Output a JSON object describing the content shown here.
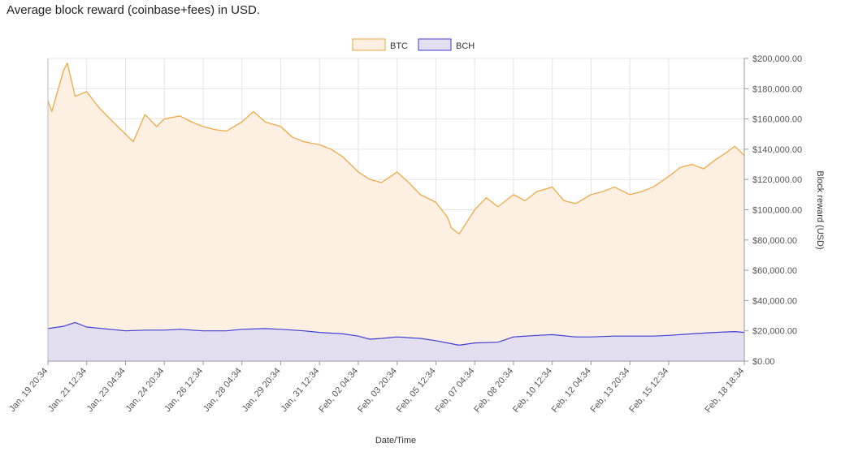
{
  "page": {
    "title": "Average block reward (coinbase+fees) in USD."
  },
  "colors": {
    "btc_line": "#f0a33a",
    "btc_fill": "#fdf0e2",
    "bch_line": "#3f3fd6",
    "bch_fill": "#e4dff0",
    "grid": "#e4e4e4"
  },
  "chart_data": {
    "type": "area",
    "title": "Average block reward (coinbase+fees) in USD.",
    "xlabel": "Date/Time",
    "ylabel": "Block reward (USD)",
    "ylim": [
      0,
      200000
    ],
    "y_ticks": [
      "$0.00",
      "$20,000.00",
      "$40,000.00",
      "$60,000.00",
      "$80,000.00",
      "$100,000.00",
      "$120,000.00",
      "$140,000.00",
      "$160,000.00",
      "$180,000.00",
      "$200,000.00"
    ],
    "x_ticks": [
      "Jan, 19 20:34",
      "Jan, 21 12:34",
      "Jan, 23 04:34",
      "Jan, 24 20:34",
      "Jan, 26 12:34",
      "Jan, 28 04:34",
      "Jan, 29 20:34",
      "Jan, 31 12:34",
      "Feb, 02 04:34",
      "Feb, 03 20:34",
      "Feb, 05 12:34",
      "Feb, 07 04:34",
      "Feb, 08 20:34",
      "Feb, 10 12:34",
      "Feb, 12 04:34",
      "Feb, 13 20:34",
      "Feb, 15 12:34",
      "Feb, 18 18:34"
    ],
    "legend_position": "top-center",
    "grid": true,
    "series": [
      {
        "name": "BTC",
        "x": [
          "Jan, 19 20:34",
          "Jan, 20 00:34",
          "Jan, 20 12:34",
          "Jan, 20 16:34",
          "Jan, 21 00:34",
          "Jan, 21 12:34",
          "Jan, 22 00:34",
          "Jan, 22 12:34",
          "Jan, 23 04:34",
          "Jan, 23 12:34",
          "Jan, 24 00:34",
          "Jan, 24 12:34",
          "Jan, 24 20:34",
          "Jan, 25 12:34",
          "Jan, 26 00:34",
          "Jan, 26 12:34",
          "Jan, 27 00:34",
          "Jan, 27 12:34",
          "Jan, 28 04:34",
          "Jan, 28 16:34",
          "Jan, 29 04:34",
          "Jan, 29 20:34",
          "Jan, 30 08:34",
          "Jan, 30 20:34",
          "Jan, 31 12:34",
          "Feb, 01 00:34",
          "Feb, 01 12:34",
          "Feb, 02 04:34",
          "Feb, 02 16:34",
          "Feb, 03 04:34",
          "Feb, 03 20:34",
          "Feb, 04 08:34",
          "Feb, 04 20:34",
          "Feb, 05 12:34",
          "Feb, 06 00:34",
          "Feb, 06 04:34",
          "Feb, 06 12:34",
          "Feb, 07 04:34",
          "Feb, 07 16:34",
          "Feb, 08 04:34",
          "Feb, 08 20:34",
          "Feb, 09 08:34",
          "Feb, 09 20:34",
          "Feb, 10 12:34",
          "Feb, 11 00:34",
          "Feb, 11 12:34",
          "Feb, 12 04:34",
          "Feb, 12 16:34",
          "Feb, 13 04:34",
          "Feb, 13 20:34",
          "Feb, 14 08:34",
          "Feb, 14 20:34",
          "Feb, 15 12:34",
          "Feb, 16 00:34",
          "Feb, 16 12:34",
          "Feb, 17 00:34",
          "Feb, 17 12:34",
          "Feb, 18 00:34",
          "Feb, 18 08:34",
          "Feb, 18 18:34"
        ],
        "values": [
          172000,
          165000,
          192000,
          197000,
          175000,
          178000,
          168000,
          160000,
          150000,
          145000,
          163000,
          155000,
          160000,
          162000,
          158000,
          155000,
          153000,
          152000,
          158000,
          165000,
          158000,
          155000,
          148000,
          145000,
          143000,
          140000,
          135000,
          125000,
          120000,
          118000,
          125000,
          118000,
          110000,
          105000,
          95000,
          88000,
          84000,
          100000,
          108000,
          102000,
          110000,
          106000,
          112000,
          115000,
          106000,
          104000,
          110000,
          112000,
          115000,
          110000,
          112000,
          115000,
          122000,
          128000,
          130000,
          127000,
          133000,
          138000,
          142000,
          136000
        ]
      },
      {
        "name": "BCH",
        "x": [
          "Jan, 19 20:34",
          "Jan, 20 12:34",
          "Jan, 21 00:34",
          "Jan, 21 12:34",
          "Jan, 22 12:34",
          "Jan, 23 04:34",
          "Jan, 24 00:34",
          "Jan, 24 20:34",
          "Jan, 25 12:34",
          "Jan, 26 12:34",
          "Jan, 27 12:34",
          "Jan, 28 04:34",
          "Jan, 29 04:34",
          "Jan, 29 20:34",
          "Jan, 30 20:34",
          "Jan, 31 12:34",
          "Feb, 01 12:34",
          "Feb, 02 04:34",
          "Feb, 02 16:34",
          "Feb, 03 04:34",
          "Feb, 03 20:34",
          "Feb, 04 20:34",
          "Feb, 05 12:34",
          "Feb, 06 00:34",
          "Feb, 06 12:34",
          "Feb, 07 04:34",
          "Feb, 08 04:34",
          "Feb, 08 20:34",
          "Feb, 09 20:34",
          "Feb, 10 12:34",
          "Feb, 11 12:34",
          "Feb, 12 04:34",
          "Feb, 13 04:34",
          "Feb, 13 20:34",
          "Feb, 14 20:34",
          "Feb, 15 12:34",
          "Feb, 16 12:34",
          "Feb, 17 12:34",
          "Feb, 18 08:34",
          "Feb, 18 18:34"
        ],
        "values": [
          21500,
          23000,
          25500,
          22500,
          21000,
          20000,
          20500,
          20500,
          21000,
          20000,
          20000,
          21000,
          21500,
          21000,
          20000,
          19000,
          18000,
          16500,
          14500,
          15000,
          16000,
          15000,
          13500,
          12000,
          10500,
          12000,
          12500,
          16000,
          17000,
          17500,
          16000,
          16000,
          16500,
          16500,
          16500,
          17000,
          18000,
          19000,
          19500,
          19000
        ]
      }
    ]
  }
}
